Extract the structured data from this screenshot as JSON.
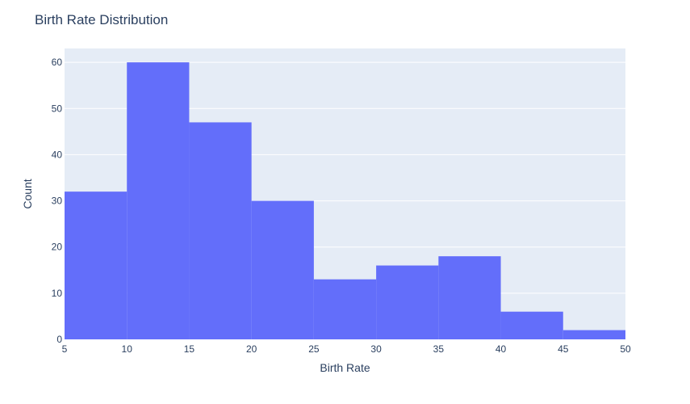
{
  "chart_data": {
    "type": "bar",
    "title": "Birth Rate Distribution",
    "xlabel": "Birth Rate",
    "ylabel": "Count",
    "bins": [
      {
        "start": 5,
        "end": 10,
        "count": 32
      },
      {
        "start": 10,
        "end": 15,
        "count": 60
      },
      {
        "start": 15,
        "end": 20,
        "count": 47
      },
      {
        "start": 20,
        "end": 25,
        "count": 30
      },
      {
        "start": 25,
        "end": 30,
        "count": 13
      },
      {
        "start": 30,
        "end": 35,
        "count": 16
      },
      {
        "start": 35,
        "end": 40,
        "count": 18
      },
      {
        "start": 40,
        "end": 45,
        "count": 6
      },
      {
        "start": 45,
        "end": 50,
        "count": 2
      }
    ],
    "xlim": [
      5,
      50
    ],
    "ylim": [
      0,
      63
    ],
    "x_ticks": [
      5,
      10,
      15,
      20,
      25,
      30,
      35,
      40,
      45,
      50
    ],
    "y_ticks": [
      0,
      10,
      20,
      30,
      40,
      50,
      60
    ],
    "grid": true,
    "colors": {
      "bar": "#636efa",
      "plot_background": "#e5ecf6",
      "grid": "#ffffff",
      "text": "#2a3f5f"
    }
  }
}
